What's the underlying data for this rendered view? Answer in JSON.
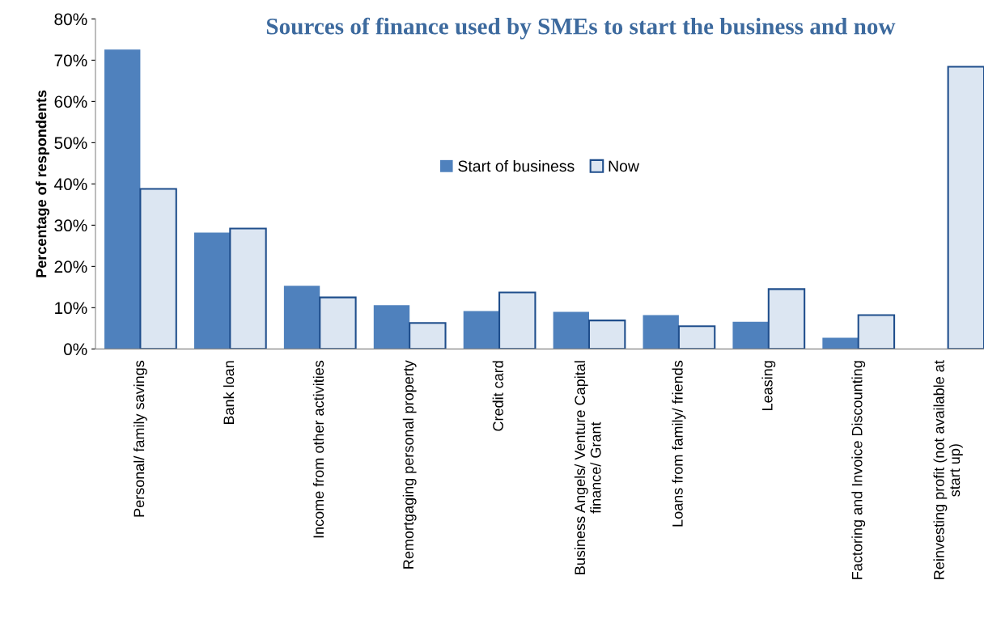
{
  "chart_data": {
    "type": "bar",
    "title": "Sources of finance used by SMEs to start the business and now",
    "ylabel": "Percentage of respondents",
    "categories": [
      "Personal/ family savings",
      "Bank loan",
      "Income from other activities",
      "Remortgaging personal property",
      "Credit card",
      "Business Angels/ Venture Capital\nfinance/ Grant",
      "Loans from family/ friends",
      "Leasing",
      "Factoring and Invoice Discounting",
      "Reinvesting profit (not available at\nstart up)"
    ],
    "series": [
      {
        "name": "Start of business",
        "color": "#4f81bd",
        "values": [
          72.6,
          28.2,
          15.3,
          10.6,
          9.2,
          9.0,
          8.2,
          6.6,
          2.7,
          null
        ]
      },
      {
        "name": "Now",
        "color": "#dce6f2",
        "values": [
          38.8,
          29.2,
          12.5,
          6.3,
          13.7,
          6.9,
          5.5,
          14.5,
          8.2,
          68.4
        ]
      }
    ],
    "ylim": [
      0,
      80
    ],
    "yticks": [
      {
        "value": 0,
        "label": "0%"
      },
      {
        "value": 10,
        "label": "10%"
      },
      {
        "value": 20,
        "label": "20%"
      },
      {
        "value": 30,
        "label": "30%"
      },
      {
        "value": 40,
        "label": "40%"
      },
      {
        "value": 50,
        "label": "50%"
      },
      {
        "value": 60,
        "label": "60%"
      },
      {
        "value": 70,
        "label": "70%"
      },
      {
        "value": 80,
        "label": "80%"
      }
    ],
    "grid": false,
    "legend": "center"
  }
}
